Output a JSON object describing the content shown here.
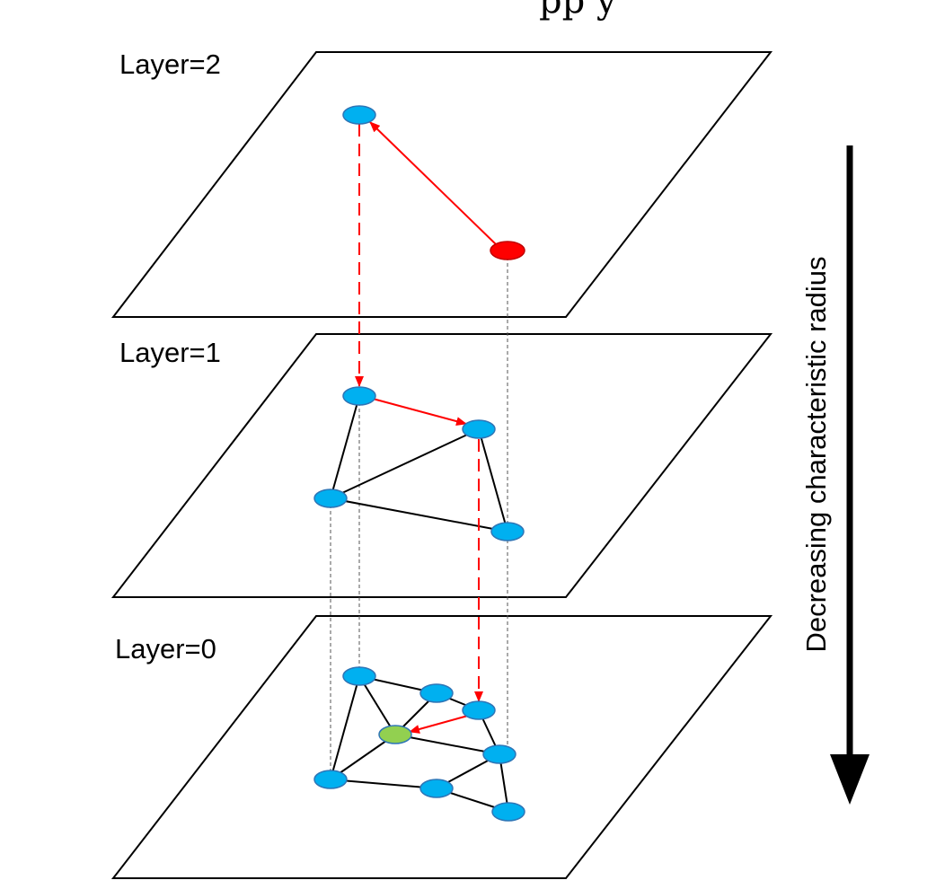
{
  "top_fragment": "pp y",
  "layers": [
    {
      "label": "Layer=2"
    },
    {
      "label": "Layer=1"
    },
    {
      "label": "Layer=0"
    }
  ],
  "axis": {
    "label": "Decreasing characteristic radius"
  },
  "colors": {
    "node": "#00b0f0",
    "entry_node": "#ff0000",
    "target_node": "#92d050",
    "search_path": "#ff0000",
    "edges": "#000000"
  }
}
